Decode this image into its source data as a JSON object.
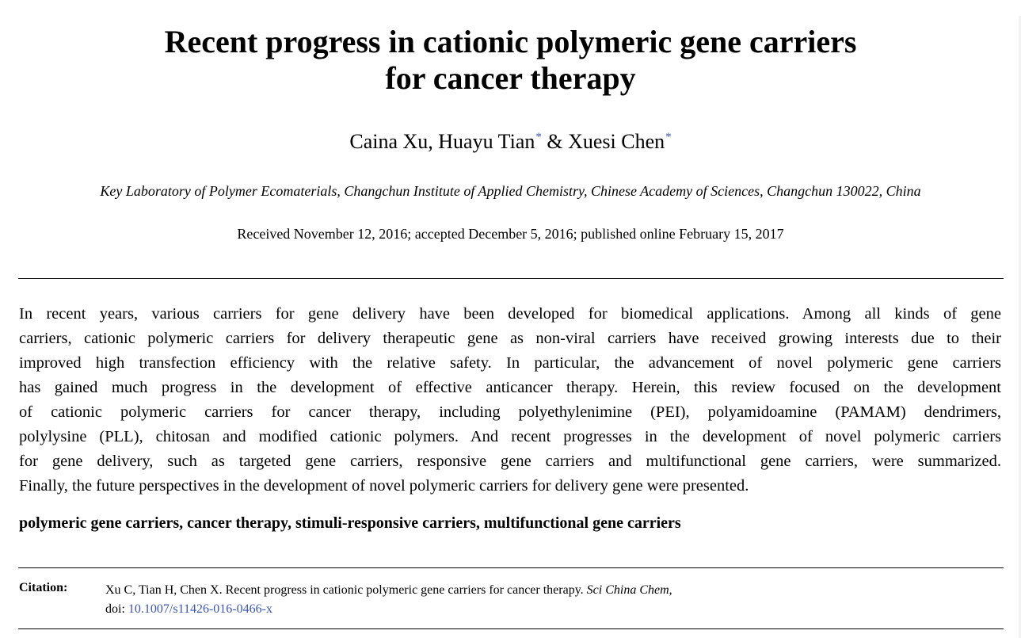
{
  "title_lines": [
    "Recent progress in cationic polymeric gene carriers",
    "for cancer therapy"
  ],
  "authors": {
    "a1": "Caina Xu, ",
    "a2": "Huayu Tian",
    "a2_mark": "*",
    "sep": " & ",
    "a3": "Xuesi Chen",
    "a3_mark": "*"
  },
  "affiliation": "Key Laboratory of Polymer Ecomaterials, Changchun Institute of Applied Chemistry, Chinese Academy of Sciences, Changchun 130022, China",
  "dates": "Received November 12, 2016; accepted December 5, 2016; published online February 15, 2017",
  "abstract_lines": [
    "In recent years, various carriers for gene delivery have been developed for biomedical applications.  Among all kinds of gene",
    "carriers, cationic polymeric carriers for delivery therapeutic gene as non-viral carriers have received growing interests due to their",
    "improved high transfection efficiency with the relative safety.  In particular, the advancement of novel polymeric gene carriers",
    "has gained much progress in the development of effective anticancer therapy.  Herein, this review focused on the development",
    "of cationic polymeric carriers for cancer therapy, including polyethylenimine (PEI), polyamidoamine (PAMAM) dendrimers,",
    "polylysine (PLL), chitosan and modified cationic polymers.  And recent progresses in the development of novel polymeric carriers",
    "for gene delivery, such as targeted gene carriers, responsive gene carriers and multifunctional gene carriers, were summarized.",
    "Finally, the future perspectives in the development of novel polymeric carriers for delivery gene were presented."
  ],
  "keywords": "polymeric gene carriers, cancer therapy, stimuli-responsive carriers, multifunctional gene carriers",
  "citation": {
    "label": "Citation:",
    "text": "Xu C, Tian H, Chen X. Recent progress in cationic polymeric gene carriers for cancer therapy. ",
    "journal": "Sci China Chem",
    "after_journal": ",",
    "doi_label": "doi:",
    "doi": "10.1007/s11426-016-0466-x"
  },
  "colors": {
    "link": "#3a55b4"
  }
}
